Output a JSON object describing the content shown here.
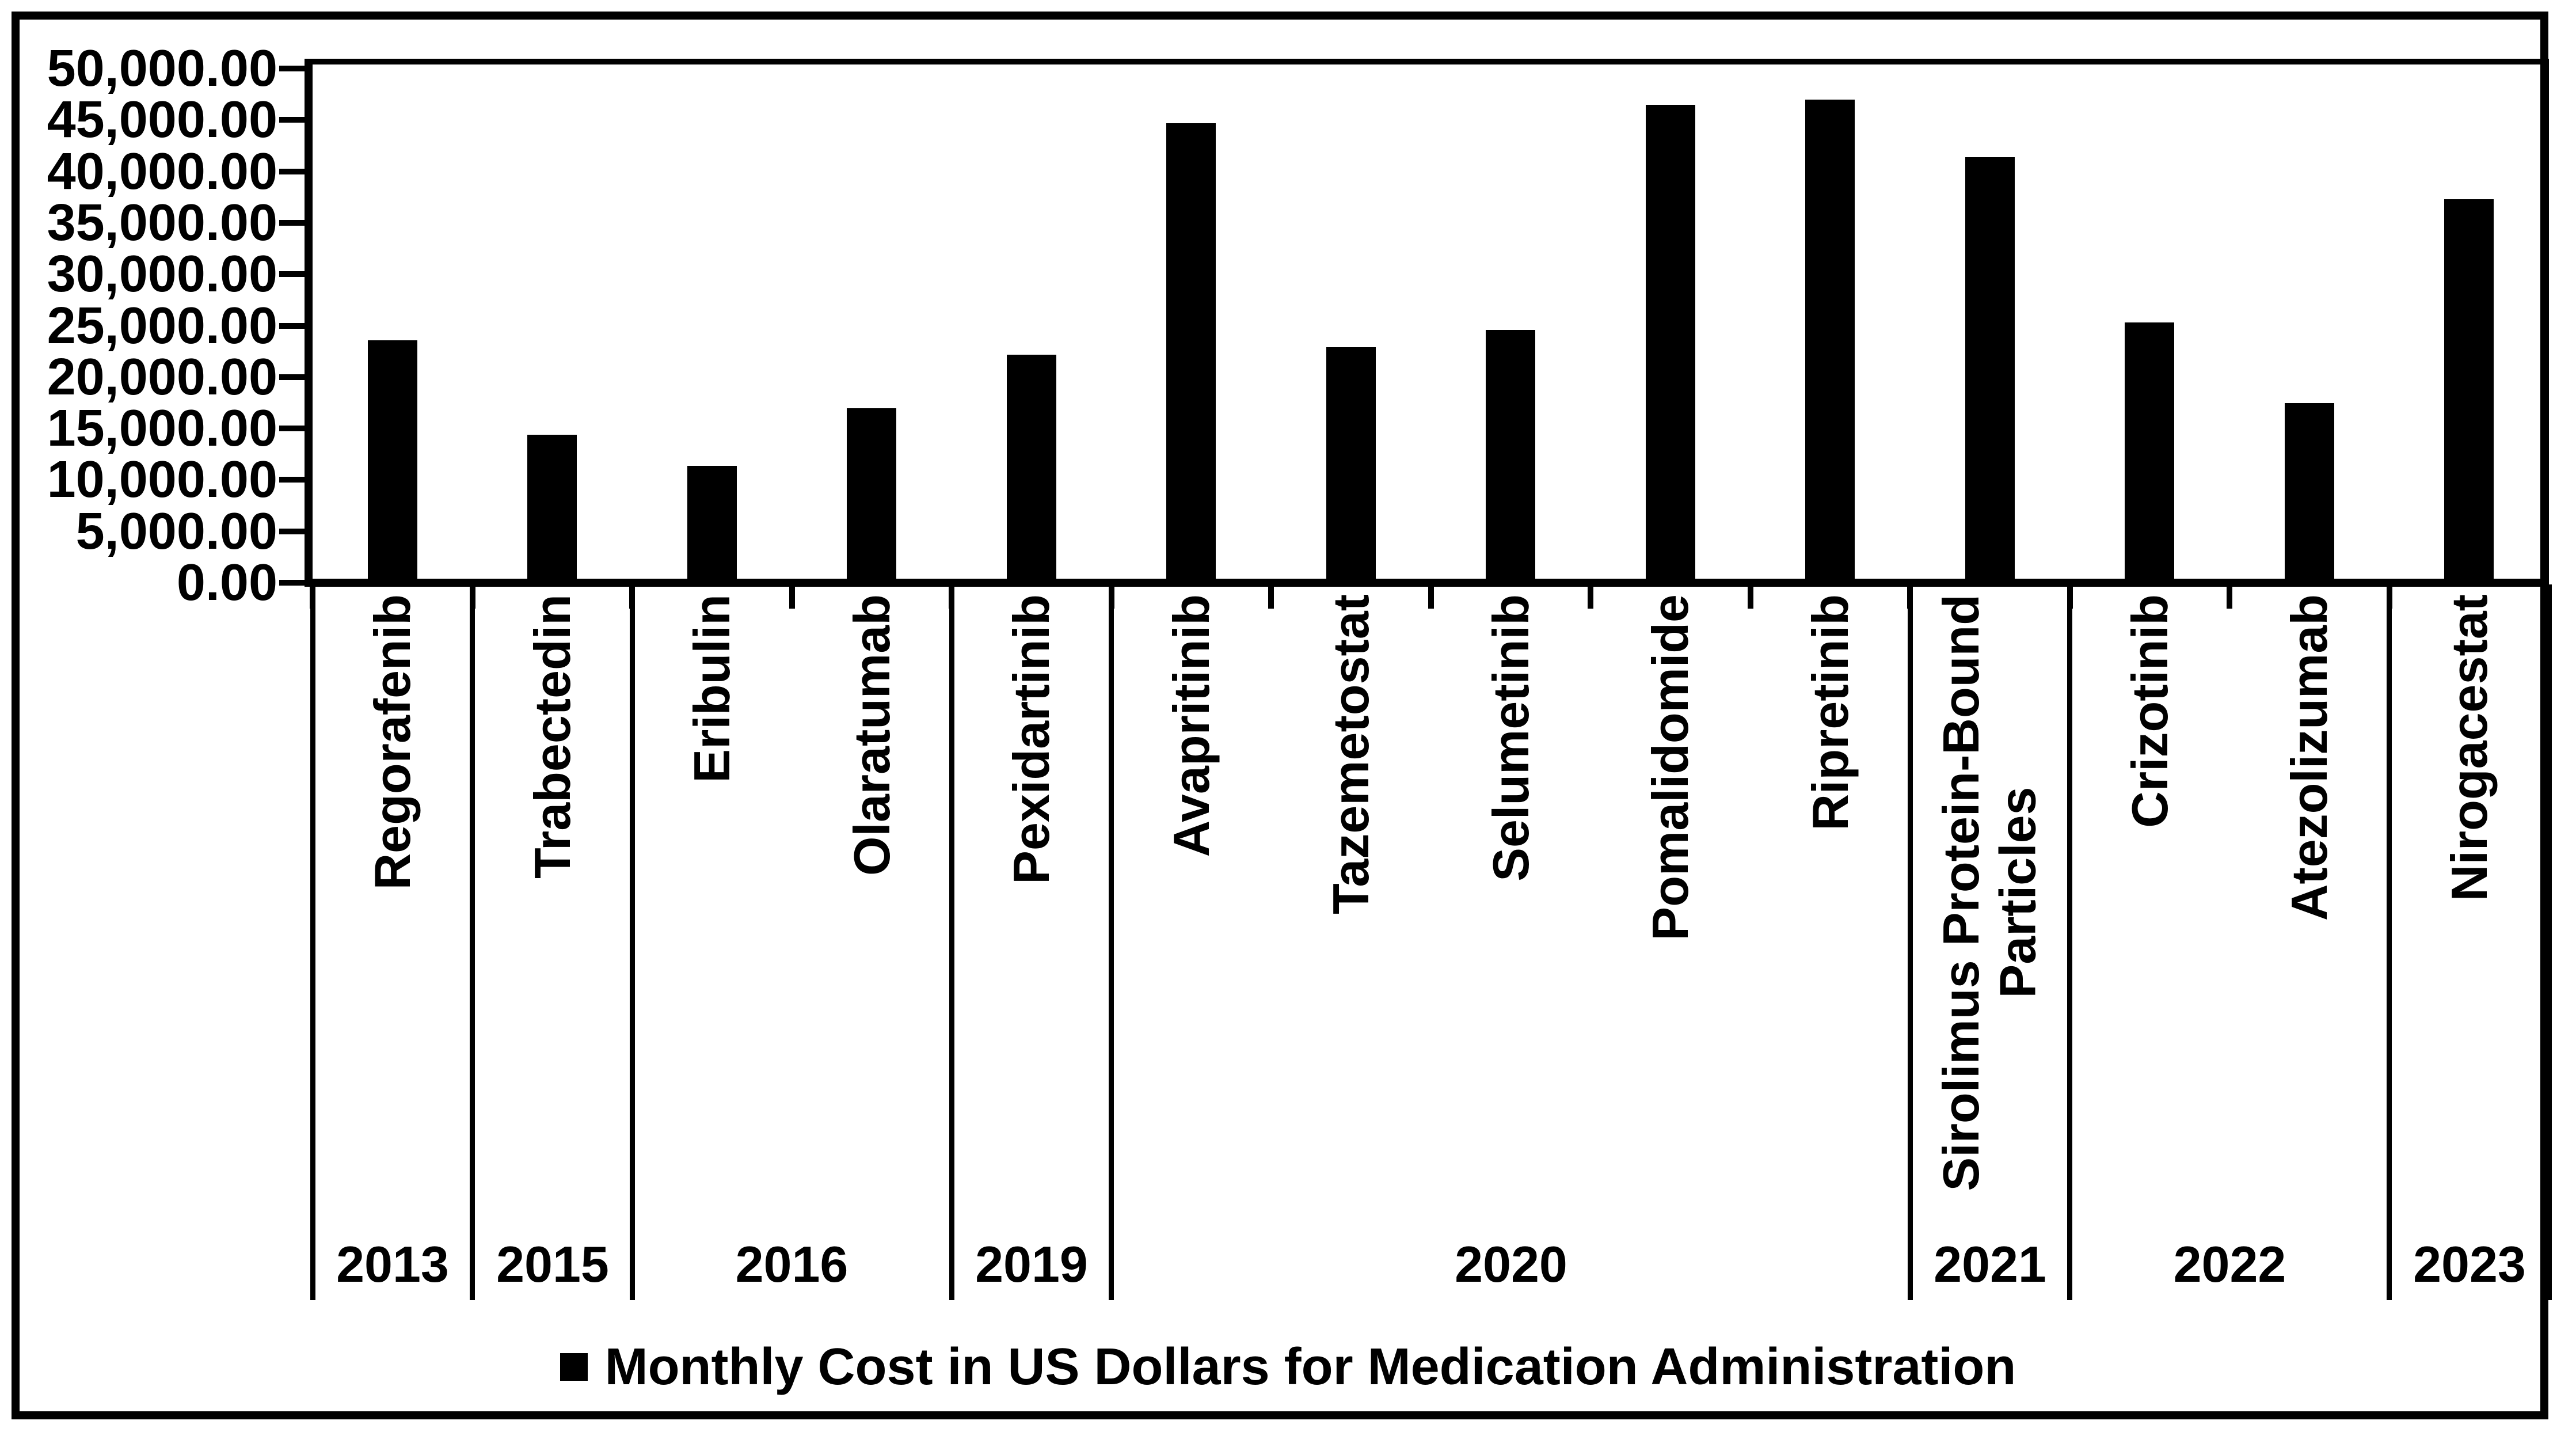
{
  "figure": {
    "background_color": "#ffffff",
    "ink_color": "#000000"
  },
  "y_axis": {
    "min": 0,
    "max": 50000,
    "step": 5000,
    "tick_labels": [
      "50,000.00",
      "45,000.00",
      "40,000.00",
      "35,000.00",
      "30,000.00",
      "25,000.00",
      "20,000.00",
      "15,000.00",
      "10,000.00",
      "5,000.00",
      "0.00"
    ]
  },
  "legend": {
    "marker_icon": "filled-square",
    "label": "Monthly Cost in US Dollars for Medication Administration"
  },
  "chart_data": {
    "type": "bar",
    "title": "",
    "xlabel": "",
    "ylabel": "",
    "ylim": [
      0,
      50000
    ],
    "y_tick_step": 5000,
    "grid": false,
    "legend_position": "bottom",
    "bar_color": "#000000",
    "categories": [
      "Regorafenib",
      "Trabectedin",
      "Eribulin",
      "Olaratumab",
      "Pexidartinib",
      "Avapritinib",
      "Tazemetostat",
      "Selumetinib",
      "Pomalidomide",
      "Ripretinib",
      "Sirolimus Protein-Bound Particles",
      "Crizotinib",
      "Atezolizumab",
      "Nirogacestat"
    ],
    "category_label_lines": [
      [
        "Regorafenib"
      ],
      [
        "Trabectedin"
      ],
      [
        "Eribulin"
      ],
      [
        "Olaratumab"
      ],
      [
        "Pexidartinib"
      ],
      [
        "Avapritinib"
      ],
      [
        "Tazemetostat"
      ],
      [
        "Selumetinib"
      ],
      [
        "Pomalidomide"
      ],
      [
        "Ripretinib"
      ],
      [
        "Sirolimus Protein-Bound",
        "Particles"
      ],
      [
        "Crizotinib"
      ],
      [
        "Atezolizumab"
      ],
      [
        "Nirogacestat"
      ]
    ],
    "series": [
      {
        "name": "Monthly Cost in US Dollars for Medication Administration",
        "values": [
          23200,
          14000,
          11000,
          16600,
          21800,
          44300,
          22500,
          24200,
          46100,
          46600,
          41000,
          24900,
          17100,
          36900
        ]
      }
    ],
    "year_groups": [
      {
        "label": "2013",
        "start": 0,
        "end": 1
      },
      {
        "label": "2015",
        "start": 1,
        "end": 2
      },
      {
        "label": "2016",
        "start": 2,
        "end": 4
      },
      {
        "label": "2019",
        "start": 4,
        "end": 5
      },
      {
        "label": "2020",
        "start": 5,
        "end": 10
      },
      {
        "label": "2021",
        "start": 10,
        "end": 11
      },
      {
        "label": "2022",
        "start": 11,
        "end": 13
      },
      {
        "label": "2023",
        "start": 13,
        "end": 14
      }
    ]
  }
}
